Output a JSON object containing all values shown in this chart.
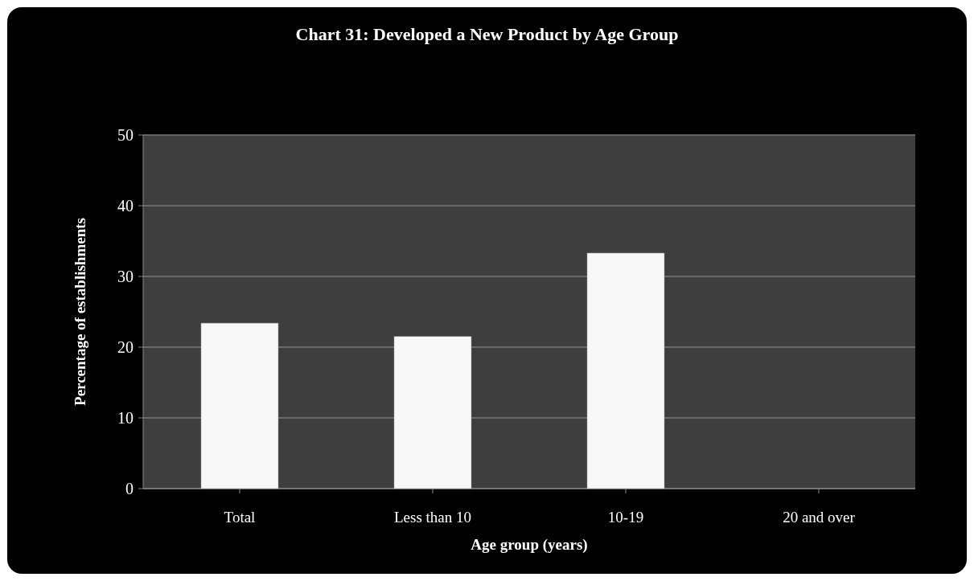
{
  "chart_data": {
    "type": "bar",
    "title": "Chart 31: Developed a New Product by Age Group",
    "xlabel": "Age group (years)",
    "ylabel": "Percentage of establishments",
    "categories": [
      "Total",
      "Less than 10",
      "10-19",
      "20 and over"
    ],
    "values": [
      23.4,
      21.5,
      33.3,
      0
    ],
    "color": "#f8f8f8",
    "ylim": [
      0,
      50
    ],
    "yticks": [
      0,
      10,
      20,
      30,
      40,
      50
    ],
    "grid": "y"
  }
}
